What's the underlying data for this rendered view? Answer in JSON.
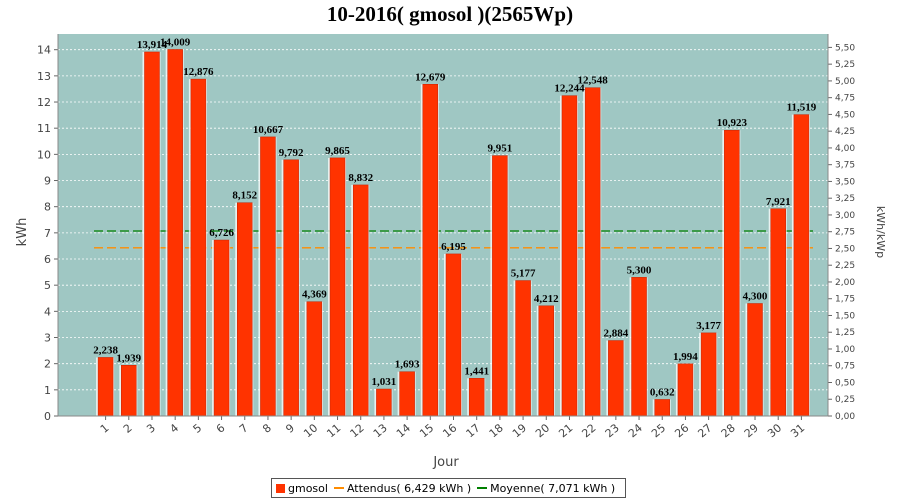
{
  "chart_data": {
    "type": "bar",
    "title": "10-2016( gmosol )(2565Wp)",
    "xlabel": "Jour",
    "ylabel": "kWh",
    "y2label": "kWh/kWp",
    "ylim": [
      0,
      14.6
    ],
    "y2lim": [
      0,
      5.7
    ],
    "yticks": [
      "0",
      "1",
      "2",
      "3",
      "4",
      "5",
      "6",
      "7",
      "8",
      "9",
      "10",
      "11",
      "12",
      "13",
      "14"
    ],
    "y2ticks": [
      "0,00",
      "0,25",
      "0,50",
      "0,75",
      "1,00",
      "1,25",
      "1,50",
      "1,75",
      "2,00",
      "2,25",
      "2,50",
      "2,75",
      "3,00",
      "3,25",
      "3,50",
      "3,75",
      "4,00",
      "4,25",
      "4,50",
      "4,75",
      "5,00",
      "5,25",
      "5,50"
    ],
    "grid": true,
    "legend_position": "bottom",
    "categories": [
      "1",
      "2",
      "3",
      "4",
      "5",
      "6",
      "7",
      "8",
      "9",
      "10",
      "11",
      "12",
      "13",
      "14",
      "15",
      "16",
      "17",
      "18",
      "19",
      "20",
      "21",
      "22",
      "23",
      "24",
      "25",
      "26",
      "27",
      "28",
      "29",
      "30",
      "31"
    ],
    "series": [
      {
        "name": "gmosol",
        "color": "#ff3300",
        "values": [
          2.238,
          1.939,
          13.914,
          14.009,
          12.876,
          6.726,
          8.152,
          10.667,
          9.792,
          4.369,
          9.865,
          8.832,
          1.031,
          1.693,
          12.679,
          6.195,
          1.441,
          9.951,
          5.177,
          4.212,
          12.244,
          12.548,
          2.884,
          5.3,
          0.632,
          1.994,
          3.177,
          10.923,
          4.3,
          7.921,
          11.519
        ],
        "labels": [
          "2,238",
          "1,939",
          "13,914",
          "14,009",
          "12,876",
          "6,726",
          "8,152",
          "10,667",
          "9,792",
          "4,369",
          "9,865",
          "8,832",
          "1,031",
          "1,693",
          "12,679",
          "6,195",
          "1,441",
          "9,951",
          "5,177",
          "4,212",
          "12,244",
          "12,548",
          "2,884",
          "5,300",
          "0,632",
          "1,994",
          "3,177",
          "10,923",
          "4,300",
          "7,921",
          "11,519"
        ]
      }
    ],
    "reference_lines": [
      {
        "name": "Attendus",
        "value": 6.429,
        "color": "#ff8c00"
      },
      {
        "name": "Moyenne",
        "value": 7.071,
        "color": "#008000"
      }
    ],
    "plot_background": "#9fc7c3"
  },
  "legend": {
    "bars_label": "gmosol",
    "attendus_label": "Attendus( 6,429 kWh )",
    "moyenne_label": "Moyenne( 7,071 kWh )"
  }
}
